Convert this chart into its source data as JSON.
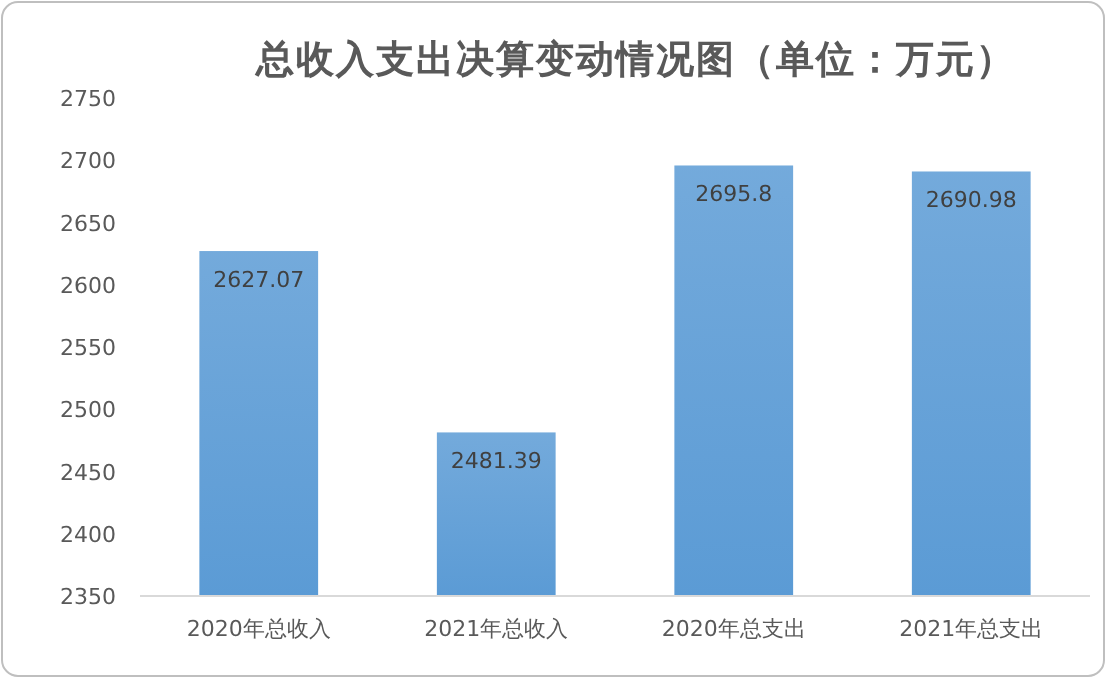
{
  "chart_data": {
    "type": "bar",
    "title": "总收入支出决算变动情况图（单位：万元）",
    "categories": [
      "2020年总收入",
      "2021年总收入",
      "2020年总支出",
      "2021年总支出"
    ],
    "values": [
      2627.07,
      2481.39,
      2695.8,
      2690.98
    ],
    "color": "#5b9bd5",
    "ylim": [
      2350,
      2750
    ],
    "yticks": [
      2350,
      2400,
      2450,
      2500,
      2550,
      2600,
      2650,
      2700,
      2750
    ],
    "data_labels": true
  }
}
